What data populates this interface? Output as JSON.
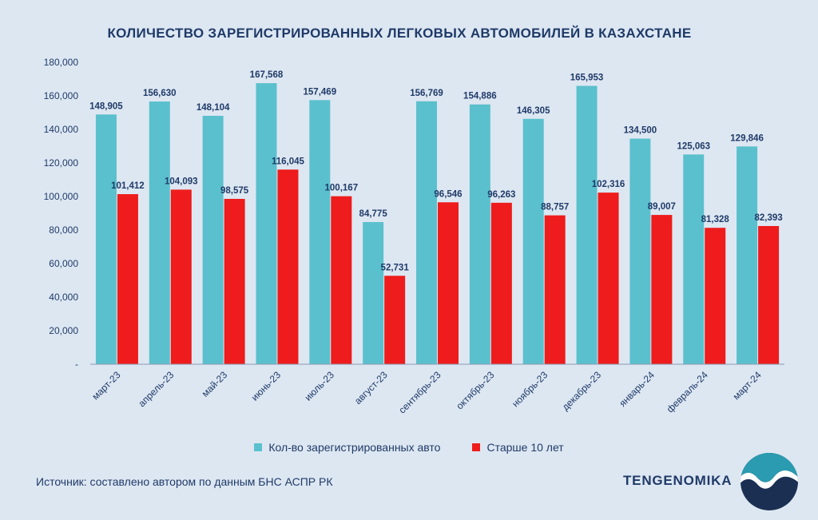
{
  "chart_data": {
    "type": "bar",
    "title": "КОЛИЧЕСТВО ЗАРЕГИСТРИРОВАННЫХ ЛЕГКОВЫХ АВТОМОБИЛЕЙ В КАЗАХСТАНЕ",
    "categories": [
      "март-23",
      "апрель-23",
      "май-23",
      "июнь-23",
      "июль-23",
      "август-23",
      "сентябрь-23",
      "октябрь-23",
      "ноябрь-23",
      "декабрь-23",
      "январь-24",
      "февраль-24",
      "март-24"
    ],
    "series": [
      {
        "name": "Кол-во зарегистрированных авто",
        "color": "#5bc0cd",
        "values": [
          148905,
          156630,
          148104,
          167568,
          157469,
          84775,
          156769,
          154886,
          146305,
          165953,
          134500,
          125063,
          129846
        ],
        "labels": [
          "148,905",
          "156,630",
          "148,104",
          "167,568",
          "157,469",
          "84,775",
          "156,769",
          "154,886",
          "146,305",
          "165,953",
          "134,500",
          "125,063",
          "129,846"
        ]
      },
      {
        "name": "Старше 10 лет",
        "color": "#ee1c1c",
        "values": [
          101412,
          104093,
          98575,
          116045,
          100167,
          52731,
          96546,
          96263,
          88757,
          102316,
          89007,
          81328,
          82393
        ],
        "labels": [
          "101,412",
          "104,093",
          "98,575",
          "116,045",
          "100,167",
          "52,731",
          "96,546",
          "96,263",
          "88,757",
          "102,316",
          "89,007",
          "81,328",
          "82,393"
        ]
      }
    ],
    "ylim": [
      0,
      180000
    ],
    "yticks": [
      0,
      20000,
      40000,
      60000,
      80000,
      100000,
      120000,
      140000,
      160000,
      180000
    ],
    "ytick_labels": [
      "-",
      "20,000",
      "40,000",
      "60,000",
      "80,000",
      "100,000",
      "120,000",
      "140,000",
      "160,000",
      "180,000"
    ],
    "xlabel": "",
    "ylabel": "",
    "legend": "bottom"
  },
  "source": "Источник: составлено автором по данным БНС АСПР РК",
  "brand": "TENGENOMIKA",
  "colors": {
    "background": "#dde7f2",
    "text": "#1f3a68",
    "logo_dark": "#1b2f52",
    "logo_teal": "#2a9bb0"
  }
}
